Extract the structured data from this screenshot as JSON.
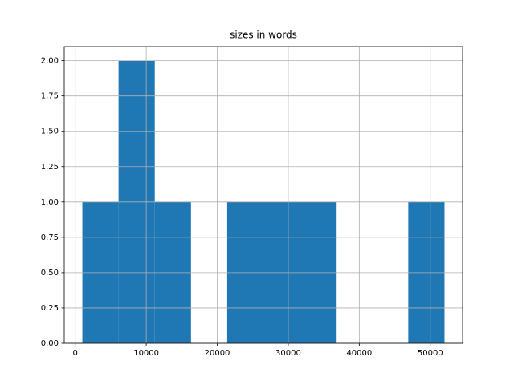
{
  "chart_data": {
    "type": "histogram",
    "title": "sizes in words",
    "bins": [
      1000,
      6100,
      11200,
      16300,
      21400,
      26500,
      31600,
      36700,
      41800,
      46900,
      52000
    ],
    "counts": [
      1,
      2,
      1,
      0,
      1,
      1,
      1,
      0,
      0,
      1
    ],
    "color": "#1f77b4",
    "xlim": [
      -1550,
      54550
    ],
    "xticks": [
      0,
      10000,
      20000,
      30000,
      40000,
      50000
    ],
    "ylim": [
      0,
      2.1
    ],
    "yticks": [
      {
        "value": 0,
        "label": "0.00"
      },
      {
        "value": 0.25,
        "label": "0.25"
      },
      {
        "value": 0.5,
        "label": "0.50"
      },
      {
        "value": 0.75,
        "label": "0.75"
      },
      {
        "value": 1,
        "label": "1.00"
      },
      {
        "value": 1.25,
        "label": "1.25"
      },
      {
        "value": 1.5,
        "label": "1.50"
      },
      {
        "value": 1.75,
        "label": "1.75"
      },
      {
        "value": 2,
        "label": "2.00"
      }
    ],
    "grid": true
  }
}
